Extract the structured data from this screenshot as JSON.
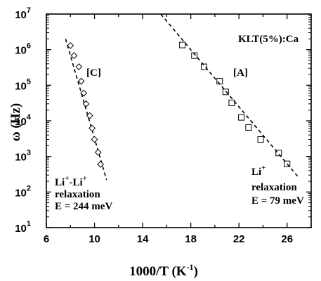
{
  "chart_data": {
    "type": "scatter",
    "title": "KLT(5%):Ca",
    "xlabel": "1000/T (K",
    "xlabel_sup": "-1",
    "xlabel_close": ")",
    "ylabel": "ω (Hz)",
    "log_y": true,
    "xlim": [
      6,
      28
    ],
    "ylim_exp": [
      1,
      7
    ],
    "x_ticks": [
      6,
      10,
      14,
      18,
      22,
      26
    ],
    "y_tick_exponents": [
      1,
      2,
      3,
      4,
      5,
      6,
      7
    ],
    "y_tick_base": "10",
    "series": [
      {
        "marker": "diamond",
        "points": [
          {
            "x": 8.0,
            "y": 1300000
          },
          {
            "x": 8.3,
            "y": 680000
          },
          {
            "x": 8.7,
            "y": 330000
          },
          {
            "x": 8.9,
            "y": 130000
          },
          {
            "x": 9.1,
            "y": 60000
          },
          {
            "x": 9.3,
            "y": 30000
          },
          {
            "x": 9.6,
            "y": 14000
          },
          {
            "x": 9.8,
            "y": 6200
          },
          {
            "x": 10.0,
            "y": 3000
          },
          {
            "x": 10.3,
            "y": 1300
          },
          {
            "x": 10.5,
            "y": 600
          }
        ],
        "fit": {
          "x1": 7.6,
          "y1": 2000000,
          "x2": 11.0,
          "y2": 220
        }
      },
      {
        "marker": "square",
        "points": [
          {
            "x": 17.3,
            "y": 1350000
          },
          {
            "x": 18.3,
            "y": 680000
          },
          {
            "x": 19.1,
            "y": 330000
          },
          {
            "x": 20.4,
            "y": 130000
          },
          {
            "x": 20.9,
            "y": 65000
          },
          {
            "x": 21.4,
            "y": 32000
          },
          {
            "x": 22.2,
            "y": 12500
          },
          {
            "x": 22.8,
            "y": 6500
          },
          {
            "x": 23.8,
            "y": 3000
          },
          {
            "x": 25.3,
            "y": 1250
          },
          {
            "x": 26.0,
            "y": 620
          }
        ],
        "fit": {
          "x1": 15.5,
          "y1": 10000000,
          "x2": 26.9,
          "y2": 270
        }
      }
    ],
    "annotations": {
      "c_label": "[C]",
      "a_label": "[A]",
      "li_li_label": "Li",
      "li_li_sup": "+",
      "li_li_dash": "-Li",
      "li_li_sup2": "+",
      "li_li_relax": "relaxation",
      "li_li_energy": "E = 244 meV",
      "li_label": "Li",
      "li_sup": "+",
      "li_relax": "relaxation",
      "li_energy": "E = 79 meV"
    }
  }
}
